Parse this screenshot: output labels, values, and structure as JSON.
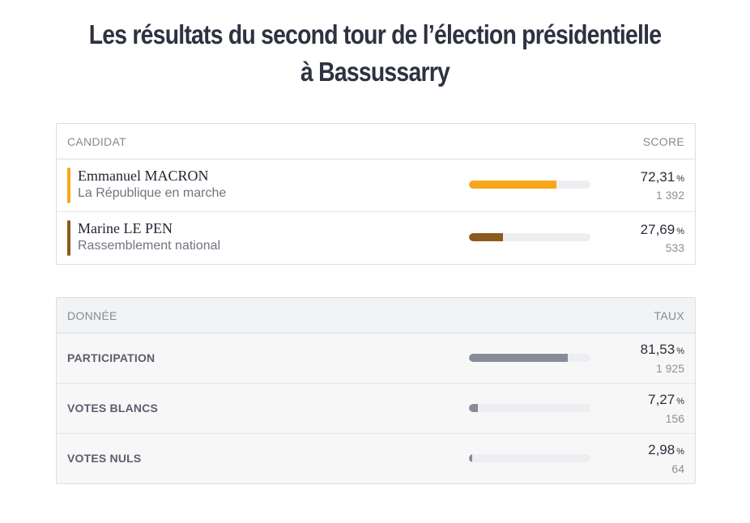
{
  "title": {
    "line1": "Les résultats du second tour de l’élection présidentielle",
    "line2": "à Bassussarry"
  },
  "candidates_table": {
    "header_left": "CANDIDAT",
    "header_right": "SCORE",
    "rows": [
      {
        "name": "Emmanuel MACRON",
        "party": "La République en marche",
        "score": "72,31",
        "unit": "%",
        "votes": "1 392",
        "fill_pct": 72.31,
        "color": "#f8a71b"
      },
      {
        "name": "Marine LE PEN",
        "party": "Rassemblement national",
        "score": "27,69",
        "unit": "%",
        "votes": "533",
        "fill_pct": 27.69,
        "color": "#8b5a1f"
      }
    ]
  },
  "data_table": {
    "header_left": "DONNÉE",
    "header_right": "TAUX",
    "rows": [
      {
        "label": "PARTICIPATION",
        "rate": "81,53",
        "unit": "%",
        "count": "1 925",
        "fill_pct": 81.53,
        "color": "#878c98"
      },
      {
        "label": "VOTES BLANCS",
        "rate": "7,27",
        "unit": "%",
        "count": "156",
        "fill_pct": 7.27,
        "color": "#878c98"
      },
      {
        "label": "VOTES NULS",
        "rate": "2,98",
        "unit": "%",
        "count": "64",
        "fill_pct": 2.98,
        "color": "#878c98"
      }
    ]
  }
}
